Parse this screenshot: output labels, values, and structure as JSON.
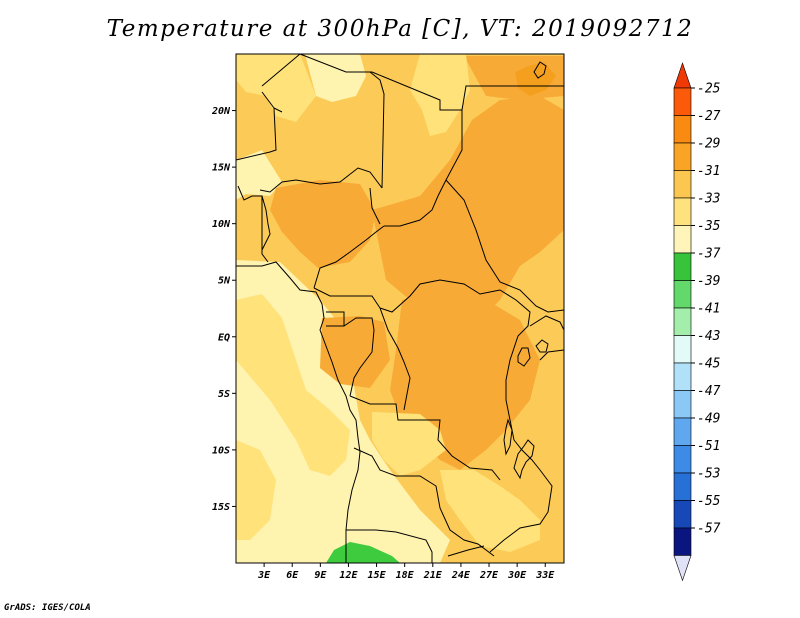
{
  "title": "Temperature at 300hPa [C], VT: 2019092712",
  "credit": "GrADS: IGES/COLA",
  "map": {
    "lon_range": [
      0,
      35
    ],
    "lat_range": [
      -20,
      25
    ],
    "x_ticks": [
      {
        "lon": 3,
        "label": "3E"
      },
      {
        "lon": 6,
        "label": "6E"
      },
      {
        "lon": 9,
        "label": "9E"
      },
      {
        "lon": 12,
        "label": "12E"
      },
      {
        "lon": 15,
        "label": "15E"
      },
      {
        "lon": 18,
        "label": "18E"
      },
      {
        "lon": 21,
        "label": "21E"
      },
      {
        "lon": 24,
        "label": "24E"
      },
      {
        "lon": 27,
        "label": "27E"
      },
      {
        "lon": 30,
        "label": "30E"
      },
      {
        "lon": 33,
        "label": "33E"
      }
    ],
    "y_ticks": [
      {
        "lat": 20,
        "label": "20N"
      },
      {
        "lat": 15,
        "label": "15N"
      },
      {
        "lat": 10,
        "label": "10N"
      },
      {
        "lat": 5,
        "label": "5N"
      },
      {
        "lat": 0,
        "label": "EQ"
      },
      {
        "lat": -5,
        "label": "5S"
      },
      {
        "lat": -10,
        "label": "10S"
      },
      {
        "lat": -15,
        "label": "15S"
      }
    ],
    "field_colors": {
      "c35": "#fff3b0",
      "c33": "#ffe27a",
      "c31": "#fccb57",
      "c29": "#f7ab36",
      "c27": "#f4a01e",
      "green": "#3ecb3e"
    },
    "line_color": "#000000"
  },
  "colorbar": {
    "levels": [
      {
        "label": "-25",
        "color": "#fa5a0a"
      },
      {
        "label": "-27",
        "color": "#f98b12"
      },
      {
        "label": "-29",
        "color": "#f9a425"
      },
      {
        "label": "-31",
        "color": "#fcc751"
      },
      {
        "label": "-33",
        "color": "#fee27d"
      },
      {
        "label": "-35",
        "color": "#fff4ba"
      },
      {
        "label": "-37",
        "color": "#37c33a"
      },
      {
        "label": "-39",
        "color": "#63d96b"
      },
      {
        "label": "-41",
        "color": "#a3eeaa"
      },
      {
        "label": "-43",
        "color": "#e2fbf8"
      },
      {
        "label": "-45",
        "color": "#b1e0f9"
      },
      {
        "label": "-47",
        "color": "#8bc8f5"
      },
      {
        "label": "-49",
        "color": "#5fa8ef"
      },
      {
        "label": "-51",
        "color": "#3d8be7"
      },
      {
        "label": "-53",
        "color": "#2770d6"
      },
      {
        "label": "-55",
        "color": "#1748b7"
      },
      {
        "label": "-57",
        "color": "#0b1580"
      }
    ],
    "top_color": "#f03a05",
    "bottom_color": "#e0e2f8"
  }
}
